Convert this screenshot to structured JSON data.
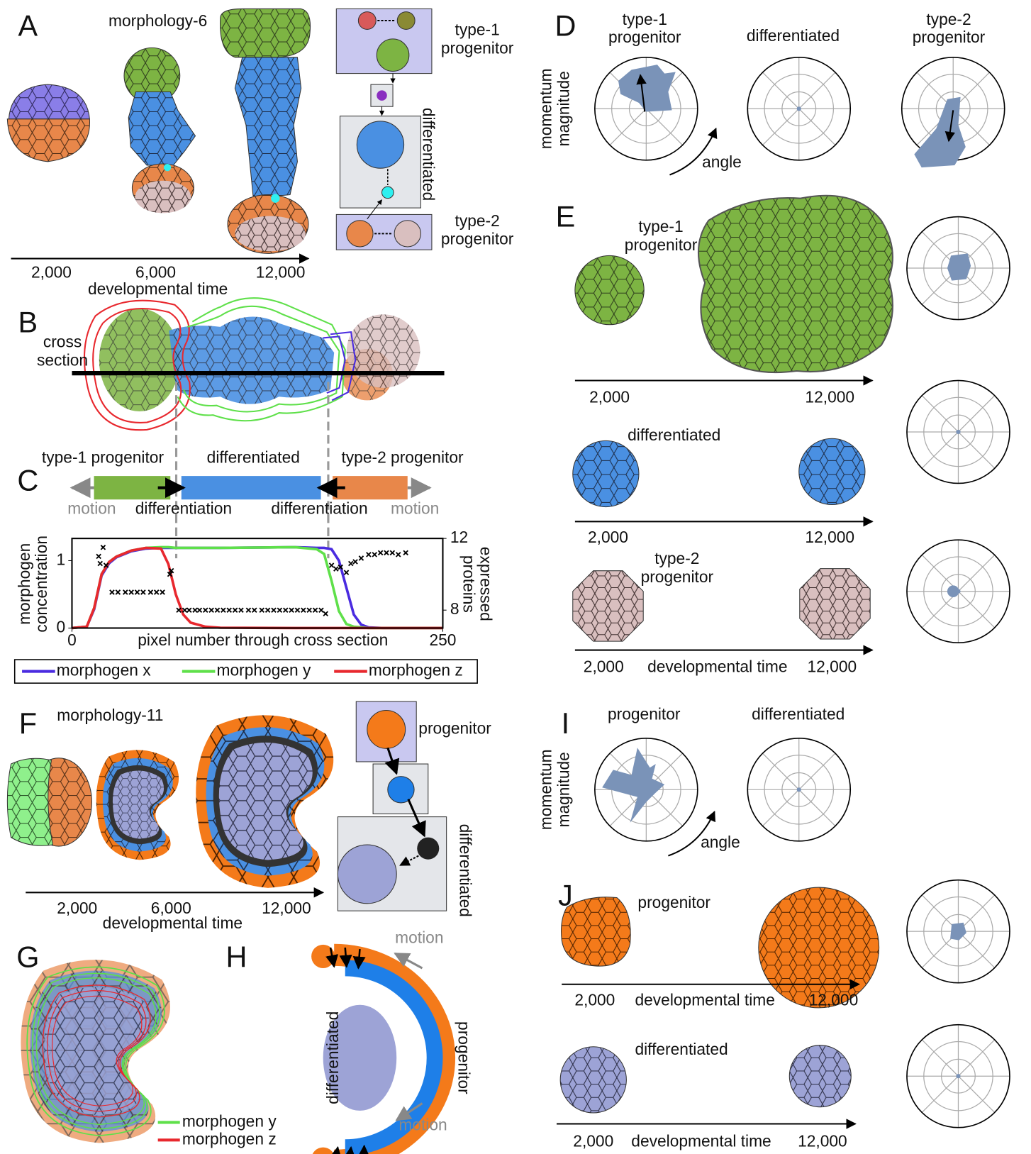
{
  "panels": {
    "A": {
      "label": "A",
      "title": "morphology-6",
      "time_ticks": [
        "2,000",
        "6,000",
        "12,000"
      ],
      "time_label": "developmental time",
      "type1": [
        "type-1",
        "progenitor"
      ],
      "differentiated": "differentiated",
      "type2": [
        "type-2",
        "progenitor"
      ]
    },
    "B": {
      "label": "B",
      "cross_section": [
        "cross",
        "section"
      ]
    },
    "C": {
      "label": "C",
      "regions": [
        "type-1 progenitor",
        "differentiated",
        "type-2 progenitor"
      ],
      "motion": [
        "motion",
        "motion"
      ],
      "differentiation": [
        "differentiation",
        "differentiation"
      ]
    },
    "D": {
      "label": "D",
      "titles": [
        [
          "type-1",
          "progenitor"
        ],
        [
          "differentiated"
        ],
        [
          "type-2",
          "progenitor"
        ]
      ],
      "y_axis": [
        "momentum",
        "magnitude"
      ],
      "angle": "angle"
    },
    "E": {
      "label": "E",
      "rows": [
        {
          "name": [
            "type-1",
            "progenitor"
          ],
          "time_ticks": [
            "2,000",
            "12,000"
          ]
        },
        {
          "name": [
            "differentiated"
          ],
          "time_ticks": [
            "2,000",
            "12,000"
          ]
        },
        {
          "name": [
            "type-2",
            "progenitor"
          ],
          "time_ticks": [
            "2,000",
            "12,000"
          ],
          "time_label": "developmental time"
        }
      ]
    },
    "F": {
      "label": "F",
      "title": "morphology-11",
      "time_ticks": [
        "2,000",
        "6,000",
        "12,000"
      ],
      "time_label": "developmental time",
      "progenitor": "progenitor",
      "differentiated": "differentiated"
    },
    "G": {
      "label": "G",
      "legend": [
        "morphogen y",
        "morphogen z"
      ]
    },
    "H": {
      "label": "H",
      "motion": [
        "motion",
        "motion"
      ],
      "differentiated": "differentiated",
      "progenitor": "progenitor"
    },
    "I": {
      "label": "I",
      "titles": [
        "progenitor",
        "differentiated"
      ],
      "y_axis": [
        "momentum",
        "magnitude"
      ],
      "angle": "angle"
    },
    "J": {
      "label": "J",
      "rows": [
        {
          "name": "progenitor",
          "time_ticks": [
            "2,000",
            "12,000"
          ],
          "time_label": "developmental time"
        },
        {
          "name": "differentiated",
          "time_ticks": [
            "2,000",
            "12,000"
          ],
          "time_label": "developmental time"
        }
      ]
    }
  },
  "chart_data": {
    "type": "line",
    "x_label": "pixel number through cross section",
    "y_label": [
      "morphogen",
      "concentration"
    ],
    "y2_label": [
      "proteins",
      "expressed"
    ],
    "xlim": [
      0,
      250
    ],
    "xticks": [
      0,
      250
    ],
    "ylim": [
      0,
      1.33
    ],
    "yticks": [
      0,
      1
    ],
    "y2lim": [
      7,
      12
    ],
    "y2ticks": [
      8,
      12
    ],
    "x": [
      0,
      10,
      15,
      20,
      25,
      30,
      40,
      50,
      60,
      65,
      70,
      75,
      80,
      90,
      100,
      150,
      165,
      170,
      175,
      180,
      185,
      190,
      195,
      200,
      210,
      250
    ],
    "series": [
      {
        "name": "morphogen x",
        "color": "#4a2be0",
        "values": [
          0,
          0.02,
          0.28,
          0.78,
          0.96,
          1.05,
          1.14,
          1.18,
          1.19,
          1.19,
          1.19,
          1.19,
          1.19,
          1.19,
          1.19,
          1.2,
          1.19,
          1.19,
          1.17,
          1.0,
          0.6,
          0.2,
          0.05,
          0.01,
          0,
          0
        ]
      },
      {
        "name": "morphogen y",
        "color": "#5fe04a",
        "values": [
          0,
          0.02,
          0.3,
          0.8,
          0.98,
          1.06,
          1.15,
          1.19,
          1.2,
          1.2,
          1.19,
          1.19,
          1.19,
          1.19,
          1.19,
          1.2,
          1.17,
          1.1,
          0.7,
          0.25,
          0.06,
          0.02,
          0.01,
          0,
          0,
          0
        ]
      },
      {
        "name": "morphogen z",
        "color": "#e8282e",
        "values": [
          0,
          0.02,
          0.3,
          0.8,
          0.98,
          1.06,
          1.15,
          1.19,
          1.18,
          0.95,
          0.5,
          0.2,
          0.08,
          0.02,
          0.005,
          0,
          0,
          0,
          0,
          0,
          0,
          0,
          0,
          0,
          0,
          0
        ]
      }
    ],
    "scatter": {
      "type": "scatter",
      "color": "#000000",
      "axis": "y2",
      "x": [
        18,
        19,
        21,
        23,
        27,
        31,
        36,
        40,
        44,
        48,
        53,
        57,
        61,
        66,
        67,
        72,
        76,
        79,
        83,
        86,
        90,
        94,
        98,
        102,
        106,
        110,
        114,
        119,
        123,
        128,
        132,
        136,
        140,
        144,
        148,
        152,
        156,
        160,
        164,
        168,
        171,
        175,
        178,
        181,
        185,
        188,
        191,
        195,
        200,
        204,
        208,
        212,
        216,
        220,
        225
      ],
      "values": [
        11.0,
        10.6,
        11.5,
        10.5,
        9.0,
        9.0,
        9.0,
        9.0,
        9.0,
        9.0,
        9.0,
        9.0,
        9.0,
        10.0,
        10.2,
        8.0,
        8.0,
        8.0,
        8.0,
        8.0,
        8.0,
        8.0,
        8.0,
        8.0,
        8.0,
        8.0,
        8.0,
        8.0,
        8.0,
        8.0,
        8.0,
        8.0,
        8.0,
        8.0,
        8.0,
        8.0,
        8.0,
        8.0,
        8.0,
        8.0,
        7.8,
        10.5,
        10.3,
        10.4,
        10.1,
        10.6,
        10.7,
        10.9,
        11.1,
        11.1,
        11.2,
        11.2,
        11.2,
        11.1,
        11.2
      ]
    }
  }
}
